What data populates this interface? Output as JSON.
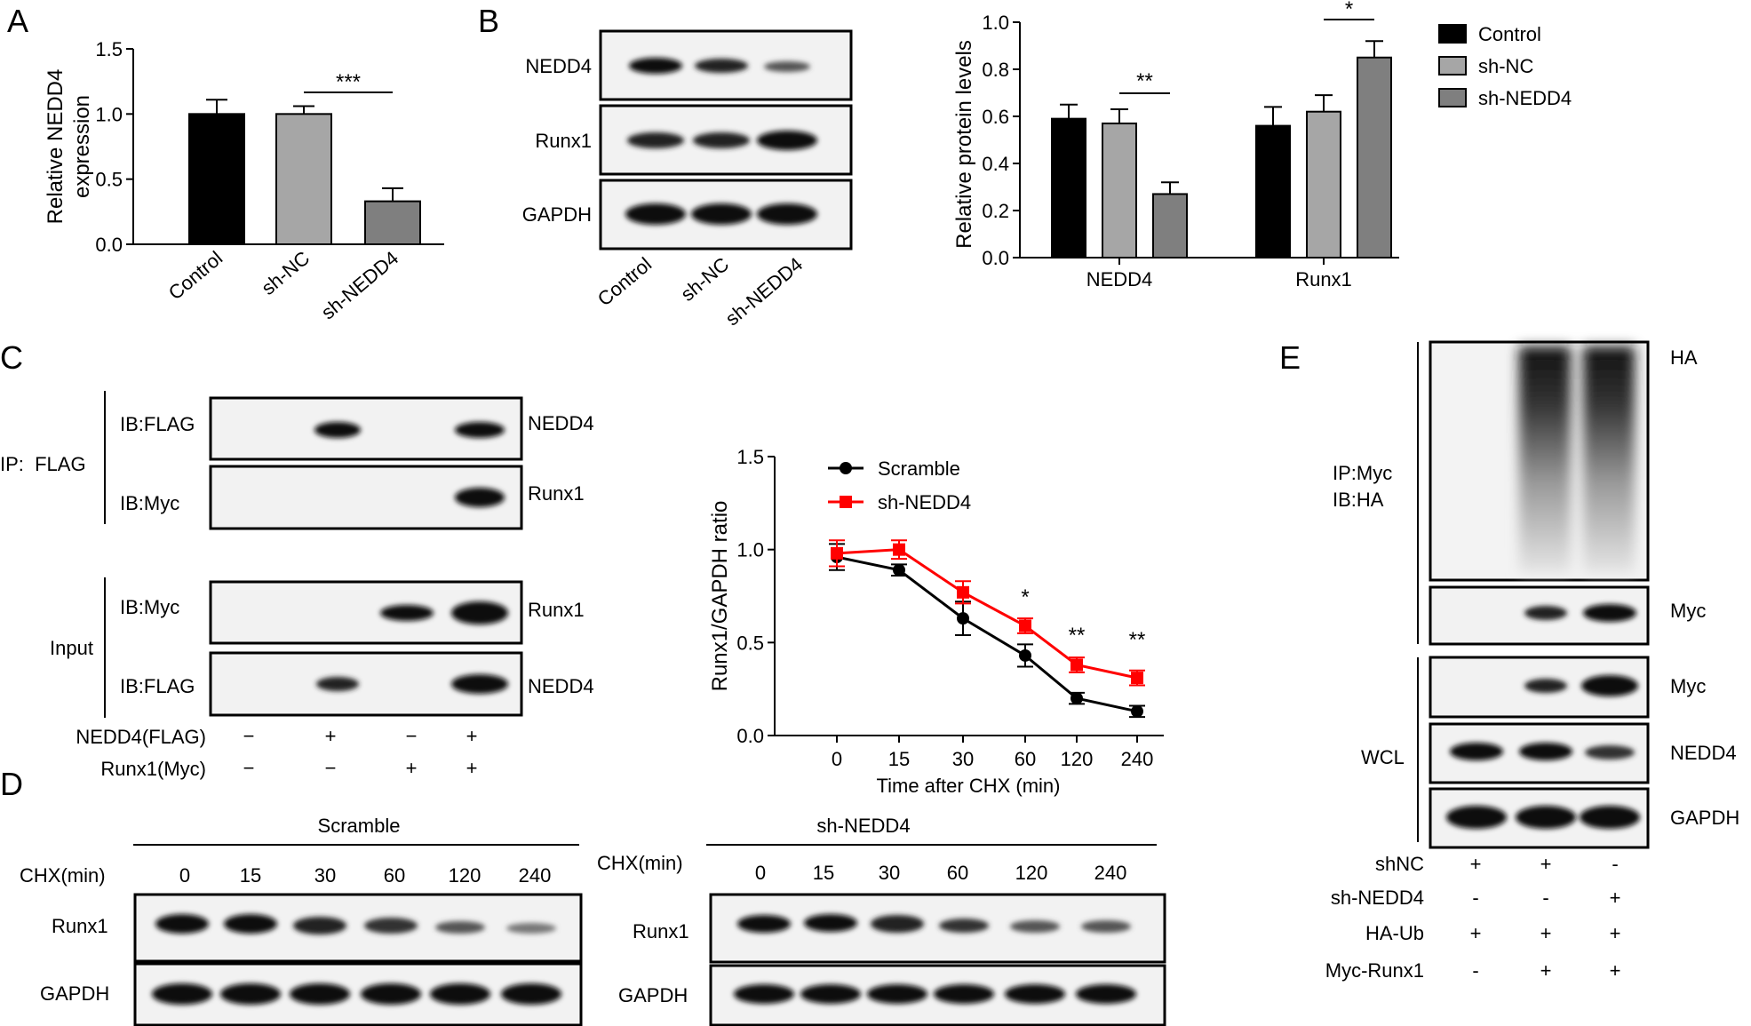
{
  "panel_letters": [
    "A",
    "B",
    "C",
    "D",
    "E"
  ],
  "colors": {
    "black": "#000000",
    "light_gray": "#a6a6a6",
    "dark_gray": "#7f7f7f",
    "red": "#ff0000"
  },
  "chart_data": [
    {
      "id": "A",
      "type": "bar",
      "categories": [
        "Control",
        "sh-NC",
        "sh-NEDD4"
      ],
      "values": [
        1.0,
        1.0,
        0.33
      ],
      "errors": [
        0.11,
        0.06,
        0.1
      ],
      "ylabel_lines": [
        "Relative NEDD4",
        "expression"
      ],
      "ylim": [
        0,
        1.5
      ],
      "yticks": [
        "0.0",
        "0.5",
        "1.0",
        "1.5"
      ],
      "annotations": [
        {
          "between": [
            "sh-NC",
            "sh-NEDD4"
          ],
          "text": "***"
        }
      ]
    },
    {
      "id": "B",
      "type": "bar",
      "groups": [
        "NEDD4",
        "Runx1"
      ],
      "series": [
        {
          "name": "Control",
          "values": [
            0.59,
            0.56
          ],
          "errors": [
            0.06,
            0.08
          ]
        },
        {
          "name": "sh-NC",
          "values": [
            0.57,
            0.62
          ],
          "errors": [
            0.06,
            0.07
          ]
        },
        {
          "name": "sh-NEDD4",
          "values": [
            0.27,
            0.85
          ],
          "errors": [
            0.05,
            0.07
          ]
        }
      ],
      "ylabel": "Relative protein levels",
      "ylim": [
        0,
        1.0
      ],
      "yticks": [
        "0.0",
        "0.2",
        "0.4",
        "0.6",
        "0.8",
        "1.0"
      ],
      "annotations": [
        {
          "group": "NEDD4",
          "text": "**"
        },
        {
          "group": "Runx1",
          "text": "*"
        }
      ]
    },
    {
      "id": "C",
      "type": "line",
      "x": [
        "0",
        "15",
        "30",
        "60",
        "120",
        "240"
      ],
      "series": [
        {
          "name": "Scramble",
          "values": [
            0.96,
            0.89,
            0.63,
            0.43,
            0.2,
            0.13
          ],
          "errors": [
            0.07,
            0.03,
            0.09,
            0.06,
            0.03,
            0.03
          ]
        },
        {
          "name": "sh-NEDD4",
          "values": [
            0.98,
            1.0,
            0.77,
            0.59,
            0.38,
            0.31
          ],
          "errors": [
            0.07,
            0.05,
            0.06,
            0.04,
            0.04,
            0.04
          ]
        }
      ],
      "xlabel": "Time after CHX (min)",
      "ylabel": "Runx1/GAPDH ratio",
      "ylim": [
        0,
        1.5
      ],
      "yticks": [
        "0.0",
        "0.5",
        "1.0",
        "1.5"
      ],
      "annotations": [
        {
          "x_index": 3,
          "text": "*"
        },
        {
          "x_index": 4,
          "text": "**"
        },
        {
          "x_index": 5,
          "text": "**"
        }
      ]
    }
  ],
  "panel_b_blot": {
    "row_labels": [
      "NEDD4",
      "Runx1",
      "GAPDH"
    ],
    "lane_labels": [
      "Control",
      "sh-NC",
      "sh-NEDD4"
    ]
  },
  "panel_c_blot": {
    "ip_label": "IP:  FLAG",
    "input_label": "Input",
    "rows": [
      {
        "ib": "IB:FLAG",
        "protein": "NEDD4"
      },
      {
        "ib": "IB:Myc",
        "protein": "Runx1"
      },
      {
        "ib": "IB:Myc",
        "protein": "Runx1"
      },
      {
        "ib": "IB:FLAG",
        "protein": "NEDD4"
      }
    ],
    "conditions": [
      {
        "label": "NEDD4(FLAG)",
        "signs": [
          "−",
          "+",
          "−",
          "+"
        ]
      },
      {
        "label": "Runx1(Myc)",
        "signs": [
          "−",
          "−",
          "+",
          "+"
        ]
      }
    ]
  },
  "panel_d_blot": {
    "left_title": "Scramble",
    "right_title": "sh-NEDD4",
    "chx_label": "CHX(min)",
    "timepoints": [
      "0",
      "15",
      "30",
      "60",
      "120",
      "240"
    ],
    "row_labels": [
      "Runx1",
      "GAPDH"
    ]
  },
  "panel_e_blot": {
    "ip_label_lines": [
      "IP:Myc",
      "IB:HA"
    ],
    "wcl_label": "WCL",
    "right_labels": [
      "HA",
      "Myc",
      "Myc",
      "NEDD4",
      "GAPDH"
    ],
    "conditions": [
      {
        "label": "shNC",
        "signs": [
          "+",
          "+",
          "-"
        ]
      },
      {
        "label": "sh-NEDD4",
        "signs": [
          "-",
          "-",
          "+"
        ]
      },
      {
        "label": "HA-Ub",
        "signs": [
          "+",
          "+",
          "+"
        ]
      },
      {
        "label": "Myc-Runx1",
        "signs": [
          "-",
          "+",
          "+"
        ]
      }
    ]
  }
}
